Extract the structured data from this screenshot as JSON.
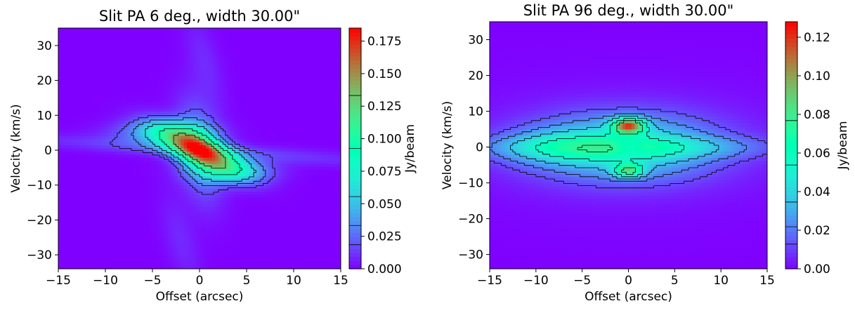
{
  "chart_data": [
    {
      "type": "heatmap",
      "title": "Slit PA 6 deg., width 30.00\"",
      "xlabel": "Offset (arcsec)",
      "ylabel": "Velocity (km/s)",
      "xlim": [
        -15,
        15
      ],
      "ylim": [
        -34,
        35
      ],
      "xticks": [
        -15,
        -10,
        -5,
        0,
        5,
        10,
        15
      ],
      "yticks": [
        -30,
        -20,
        -10,
        0,
        10,
        20,
        30
      ],
      "colorbar": {
        "label": "Jy/beam",
        "range": [
          0,
          0.185
        ],
        "ticks": [
          0.0,
          0.025,
          0.05,
          0.075,
          0.1,
          0.125,
          0.15,
          0.175
        ],
        "tick_labels": [
          "0.000",
          "0.025",
          "0.050",
          "0.075",
          "0.100",
          "0.125",
          "0.150",
          "0.175"
        ],
        "colormap": "rainbow"
      },
      "contours": true,
      "grid": false
    },
    {
      "type": "heatmap",
      "title": "Slit PA 96 deg., width 30.00\"",
      "xlabel": "Offset (arcsec)",
      "ylabel": "Velocity (km/s)",
      "xlim": [
        -15,
        15
      ],
      "ylim": [
        -34,
        35
      ],
      "xticks": [
        -15,
        -10,
        -5,
        0,
        5,
        10,
        15
      ],
      "yticks": [
        -30,
        -20,
        -10,
        0,
        10,
        20,
        30
      ],
      "colorbar": {
        "label": "Jy/beam",
        "range": [
          0,
          0.128
        ],
        "ticks": [
          0.0,
          0.02,
          0.04,
          0.06,
          0.08,
          0.1,
          0.12
        ],
        "tick_labels": [
          "0.00",
          "0.02",
          "0.04",
          "0.06",
          "0.08",
          "0.10",
          "0.12"
        ],
        "colormap": "rainbow"
      },
      "contours": true,
      "grid": false
    }
  ]
}
